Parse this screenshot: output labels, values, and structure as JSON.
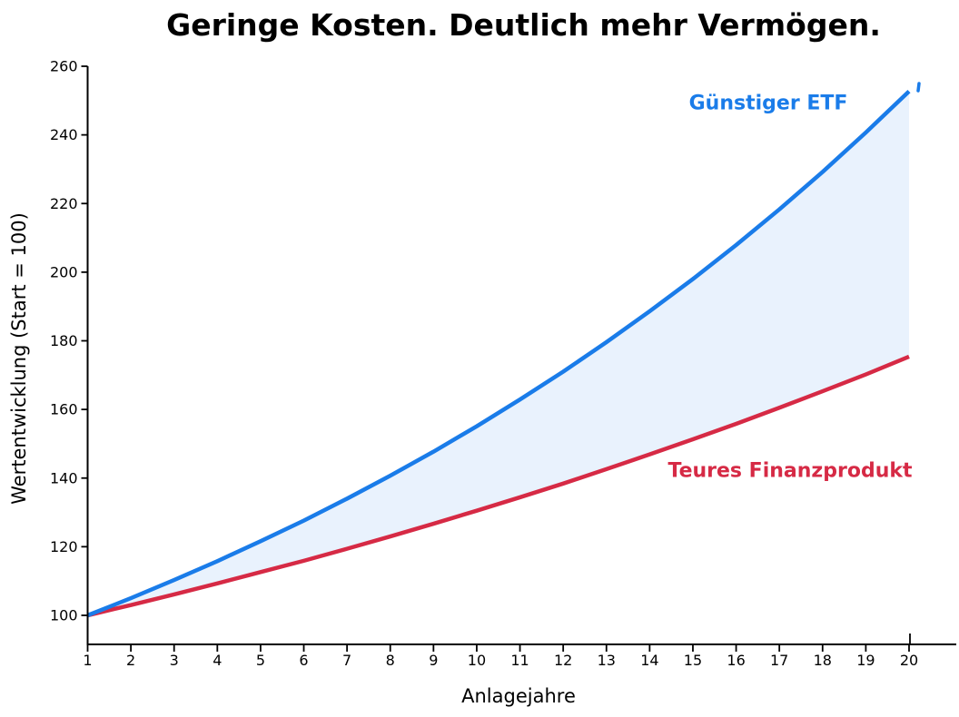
{
  "chart_data": {
    "type": "line",
    "title": "Geringe Kosten. Deutlich mehr Vermögen.",
    "xlabel": "Anlagejahre",
    "ylabel": "Wertentwicklung (Start = 100)",
    "x": [
      1,
      2,
      3,
      4,
      5,
      6,
      7,
      8,
      9,
      10,
      11,
      12,
      13,
      14,
      15,
      16,
      17,
      18,
      19,
      20
    ],
    "xticks": [
      1,
      2,
      3,
      4,
      5,
      6,
      7,
      8,
      9,
      10,
      11,
      12,
      13,
      14,
      15,
      16,
      17,
      18,
      19,
      20
    ],
    "yticks": [
      100,
      120,
      140,
      160,
      180,
      200,
      220,
      240,
      260
    ],
    "xlim": [
      1,
      21.1
    ],
    "ylim": [
      91.5,
      260
    ],
    "grid": false,
    "legend_position": "inline-labels-on-plot",
    "series": [
      {
        "name": "Günstiger ETF",
        "color": "#1a7ce9",
        "values": [
          100.0,
          105.0,
          110.3,
          115.8,
          121.6,
          127.6,
          134.0,
          140.7,
          147.7,
          155.1,
          162.9,
          171.0,
          179.6,
          188.6,
          198.0,
          207.9,
          218.3,
          229.2,
          240.7,
          252.7
        ]
      },
      {
        "name": "Teures Finanzprodukt",
        "color": "#d62a45",
        "values": [
          100.0,
          103.0,
          106.1,
          109.3,
          112.6,
          115.9,
          119.4,
          123.0,
          126.7,
          130.5,
          134.4,
          138.4,
          142.6,
          146.9,
          151.3,
          155.8,
          160.5,
          165.3,
          170.2,
          175.4
        ]
      }
    ],
    "fill_between_color": "#e9f2fd",
    "axis_color": "#000000",
    "text_color": "#000000"
  }
}
